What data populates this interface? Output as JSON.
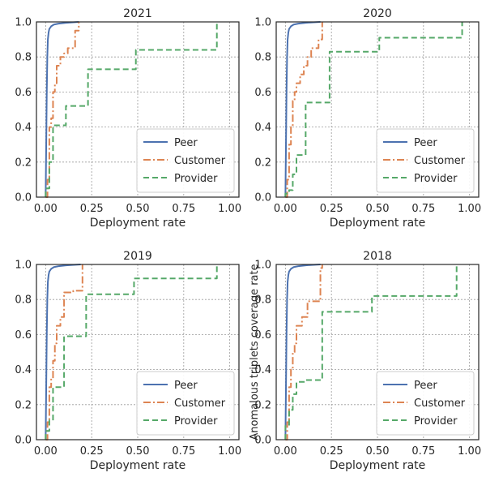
{
  "figure": {
    "shared_ylabel": "Anomalous triplets coverage rate"
  },
  "chart_data": [
    {
      "type": "line",
      "title": "2021",
      "xlabel": "Deployment rate",
      "ylabel": "",
      "xlim": [
        -0.05,
        1.05
      ],
      "ylim": [
        0,
        1
      ],
      "xticks": [
        "0.00",
        "0.25",
        "0.50",
        "0.75",
        "1.00"
      ],
      "yticks": [
        "0.0",
        "0.2",
        "0.4",
        "0.6",
        "0.8",
        "1.0"
      ],
      "grid": true,
      "legend": "bottom-right",
      "series": [
        {
          "name": "Peer",
          "color": "#4c72b0",
          "dash": "solid",
          "x": [
            0.0,
            0.003,
            0.006,
            0.009,
            0.012,
            0.016,
            0.02,
            0.03,
            0.045,
            0.07,
            0.11,
            0.18
          ],
          "y": [
            0.0,
            0.3,
            0.6,
            0.8,
            0.9,
            0.94,
            0.96,
            0.975,
            0.985,
            0.99,
            0.995,
            1.0
          ]
        },
        {
          "name": "Customer",
          "color": "#dd8452",
          "dash": "dashdot",
          "x": [
            0.0,
            0.01,
            0.01,
            0.02,
            0.02,
            0.03,
            0.03,
            0.04,
            0.04,
            0.05,
            0.05,
            0.06,
            0.06,
            0.08,
            0.08,
            0.1,
            0.1,
            0.12,
            0.12,
            0.16,
            0.16,
            0.18,
            0.18
          ],
          "y": [
            0.0,
            0.0,
            0.1,
            0.1,
            0.4,
            0.4,
            0.45,
            0.45,
            0.6,
            0.6,
            0.65,
            0.65,
            0.75,
            0.75,
            0.8,
            0.8,
            0.82,
            0.82,
            0.85,
            0.85,
            0.95,
            0.95,
            1.0
          ]
        },
        {
          "name": "Provider",
          "color": "#55a868",
          "dash": "dashed",
          "x": [
            0.0,
            0.0,
            0.02,
            0.02,
            0.04,
            0.04,
            0.07,
            0.07,
            0.11,
            0.11,
            0.23,
            0.23,
            0.49,
            0.49,
            0.93,
            0.93
          ],
          "y": [
            0.0,
            0.05,
            0.05,
            0.2,
            0.2,
            0.41,
            0.41,
            0.41,
            0.41,
            0.52,
            0.52,
            0.73,
            0.73,
            0.84,
            0.84,
            1.0
          ]
        }
      ]
    },
    {
      "type": "line",
      "title": "2020",
      "xlabel": "Deployment rate",
      "ylabel": "",
      "xlim": [
        -0.05,
        1.05
      ],
      "ylim": [
        0,
        1
      ],
      "xticks": [
        "0.00",
        "0.25",
        "0.50",
        "0.75",
        "1.00"
      ],
      "yticks": [
        "0.0",
        "0.2",
        "0.4",
        "0.6",
        "0.8",
        "1.0"
      ],
      "grid": true,
      "legend": "bottom-right",
      "series": [
        {
          "name": "Peer",
          "color": "#4c72b0",
          "dash": "solid",
          "x": [
            0.0,
            0.003,
            0.006,
            0.009,
            0.012,
            0.016,
            0.02,
            0.03,
            0.045,
            0.07,
            0.11,
            0.19
          ],
          "y": [
            0.0,
            0.3,
            0.6,
            0.8,
            0.9,
            0.94,
            0.96,
            0.975,
            0.985,
            0.99,
            0.995,
            1.0
          ]
        },
        {
          "name": "Customer",
          "color": "#dd8452",
          "dash": "dashdot",
          "x": [
            0.0,
            0.01,
            0.01,
            0.02,
            0.02,
            0.03,
            0.03,
            0.04,
            0.04,
            0.05,
            0.05,
            0.06,
            0.06,
            0.08,
            0.08,
            0.1,
            0.1,
            0.12,
            0.12,
            0.14,
            0.14,
            0.18,
            0.18,
            0.2,
            0.2
          ],
          "y": [
            0.0,
            0.0,
            0.1,
            0.1,
            0.3,
            0.3,
            0.4,
            0.4,
            0.55,
            0.55,
            0.6,
            0.6,
            0.65,
            0.65,
            0.7,
            0.7,
            0.75,
            0.75,
            0.8,
            0.8,
            0.85,
            0.85,
            0.9,
            0.9,
            1.0
          ]
        },
        {
          "name": "Provider",
          "color": "#55a868",
          "dash": "dashed",
          "x": [
            0.0,
            0.0,
            0.02,
            0.02,
            0.04,
            0.04,
            0.06,
            0.06,
            0.11,
            0.11,
            0.24,
            0.24,
            0.51,
            0.51,
            0.96,
            0.96
          ],
          "y": [
            0.0,
            0.02,
            0.02,
            0.04,
            0.04,
            0.13,
            0.13,
            0.24,
            0.24,
            0.54,
            0.54,
            0.83,
            0.83,
            0.91,
            0.91,
            1.0
          ]
        }
      ]
    },
    {
      "type": "line",
      "title": "2019",
      "xlabel": "Deployment rate",
      "ylabel": "",
      "xlim": [
        -0.05,
        1.05
      ],
      "ylim": [
        0,
        1
      ],
      "xticks": [
        "0.00",
        "0.25",
        "0.50",
        "0.75",
        "1.00"
      ],
      "yticks": [
        "0.0",
        "0.2",
        "0.4",
        "0.6",
        "0.8",
        "1.0"
      ],
      "grid": true,
      "legend": "bottom-right",
      "series": [
        {
          "name": "Peer",
          "color": "#4c72b0",
          "dash": "solid",
          "x": [
            0.0,
            0.003,
            0.006,
            0.009,
            0.012,
            0.016,
            0.02,
            0.03,
            0.045,
            0.07,
            0.11,
            0.19
          ],
          "y": [
            0.0,
            0.3,
            0.6,
            0.8,
            0.9,
            0.94,
            0.96,
            0.975,
            0.985,
            0.99,
            0.995,
            1.0
          ]
        },
        {
          "name": "Customer",
          "color": "#dd8452",
          "dash": "dashdot",
          "x": [
            0.0,
            0.01,
            0.01,
            0.02,
            0.02,
            0.03,
            0.03,
            0.04,
            0.04,
            0.05,
            0.05,
            0.06,
            0.06,
            0.08,
            0.08,
            0.1,
            0.1,
            0.15,
            0.15,
            0.2,
            0.2
          ],
          "y": [
            0.0,
            0.0,
            0.1,
            0.1,
            0.3,
            0.3,
            0.35,
            0.35,
            0.45,
            0.45,
            0.55,
            0.55,
            0.65,
            0.65,
            0.7,
            0.7,
            0.84,
            0.84,
            0.85,
            0.85,
            1.0
          ]
        },
        {
          "name": "Provider",
          "color": "#55a868",
          "dash": "dashed",
          "x": [
            0.0,
            0.0,
            0.02,
            0.02,
            0.04,
            0.04,
            0.06,
            0.06,
            0.1,
            0.1,
            0.22,
            0.22,
            0.48,
            0.48,
            0.93,
            0.93
          ],
          "y": [
            0.0,
            0.05,
            0.05,
            0.11,
            0.11,
            0.3,
            0.3,
            0.3,
            0.3,
            0.59,
            0.59,
            0.83,
            0.83,
            0.92,
            0.92,
            1.0
          ]
        }
      ]
    },
    {
      "type": "line",
      "title": "2018",
      "xlabel": "Deployment rate",
      "ylabel": "Anomalous triplets coverage rate",
      "xlim": [
        -0.05,
        1.05
      ],
      "ylim": [
        0,
        1
      ],
      "xticks": [
        "0.00",
        "0.25",
        "0.50",
        "0.75",
        "1.00"
      ],
      "yticks": [
        "0.0",
        "0.2",
        "0.4",
        "0.6",
        "0.8",
        "1.0"
      ],
      "grid": true,
      "legend": "bottom-right",
      "series": [
        {
          "name": "Peer",
          "color": "#4c72b0",
          "dash": "solid",
          "x": [
            0.0,
            0.003,
            0.006,
            0.009,
            0.012,
            0.016,
            0.02,
            0.03,
            0.045,
            0.07,
            0.11,
            0.19
          ],
          "y": [
            0.0,
            0.3,
            0.6,
            0.8,
            0.9,
            0.94,
            0.96,
            0.975,
            0.985,
            0.99,
            0.995,
            1.0
          ]
        },
        {
          "name": "Customer",
          "color": "#dd8452",
          "dash": "dashdot",
          "x": [
            0.0,
            0.01,
            0.01,
            0.02,
            0.02,
            0.03,
            0.03,
            0.04,
            0.04,
            0.05,
            0.05,
            0.06,
            0.06,
            0.09,
            0.09,
            0.12,
            0.12,
            0.19,
            0.19,
            0.2,
            0.2
          ],
          "y": [
            0.0,
            0.0,
            0.1,
            0.1,
            0.3,
            0.3,
            0.4,
            0.4,
            0.5,
            0.5,
            0.55,
            0.55,
            0.65,
            0.65,
            0.7,
            0.7,
            0.79,
            0.79,
            0.98,
            0.98,
            1.0
          ]
        },
        {
          "name": "Provider",
          "color": "#55a868",
          "dash": "dashed",
          "x": [
            0.0,
            0.0,
            0.02,
            0.02,
            0.04,
            0.04,
            0.06,
            0.06,
            0.11,
            0.11,
            0.2,
            0.2,
            0.47,
            0.47,
            0.93,
            0.93
          ],
          "y": [
            0.0,
            0.08,
            0.08,
            0.17,
            0.17,
            0.26,
            0.26,
            0.33,
            0.33,
            0.34,
            0.34,
            0.73,
            0.73,
            0.82,
            0.82,
            1.0
          ]
        }
      ]
    }
  ]
}
